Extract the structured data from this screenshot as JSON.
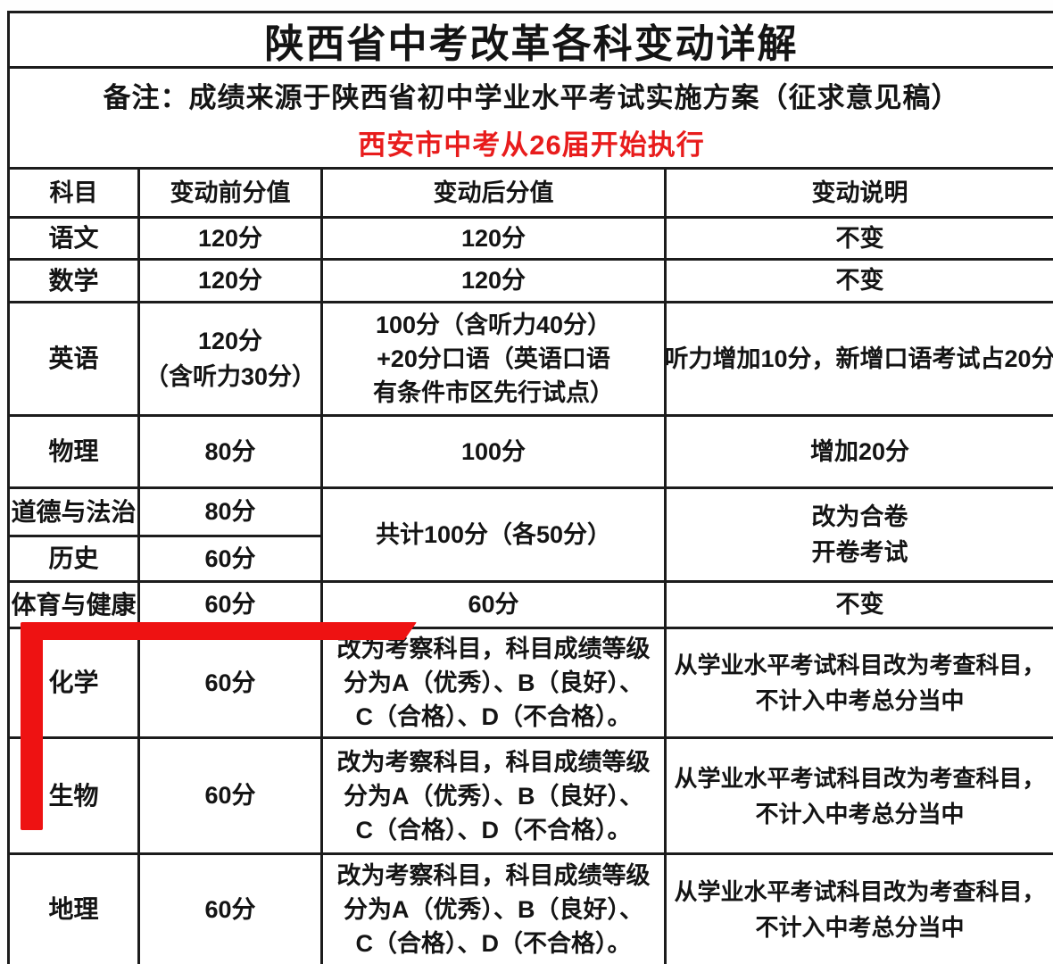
{
  "title": "陕西省中考改革各科变动详解",
  "note": {
    "line1": "备注：成绩来源于陕西省初中学业水平考试实施方案（征求意见稿）",
    "line2": "西安市中考从26届开始执行"
  },
  "colors": {
    "border": "#1c1c1c",
    "text": "#141414",
    "note_red": "#e81c1c",
    "marker_red": "#ee1212"
  },
  "marker": {
    "shape": "red L-shaped highlighter stroke bracketing the 化学 and 生物 rows"
  },
  "table": {
    "headers": [
      "科目",
      "变动前分值",
      "变动后分值",
      "变动说明"
    ],
    "rows": [
      {
        "subject": "语文",
        "before": [
          "120分"
        ],
        "after": [
          "120分"
        ],
        "note": [
          "不变"
        ]
      },
      {
        "subject": "数学",
        "before": [
          "120分"
        ],
        "after": [
          "120分"
        ],
        "note": [
          "不变"
        ]
      },
      {
        "subject": "英语",
        "before": [
          "120分",
          "（含听力30分）"
        ],
        "after": [
          "100分（含听力40分）",
          "+20分口语（英语口语",
          "有条件市区先行试点）"
        ],
        "note": [
          "听力增加10分，新增口语考试占20分"
        ]
      },
      {
        "subject": "物理",
        "before": [
          "80分"
        ],
        "after": [
          "100分"
        ],
        "note": [
          "增加20分"
        ]
      },
      {
        "subject": "道德与法治",
        "before": [
          "80分"
        ]
      },
      {
        "subject": "历史",
        "before": [
          "60分"
        ]
      },
      {
        "subject": "体育与健康",
        "before": [
          "60分"
        ],
        "after": [
          "60分"
        ],
        "note": [
          "不变"
        ]
      },
      {
        "subject": "化学",
        "before": [
          "60分"
        ],
        "after": [
          "改为考察科目，科目成绩等级",
          "分为A（优秀）、B（良好）、",
          "C（合格）、D（不合格）。"
        ],
        "note": [
          "从学业水平考试科目改为考查科目，",
          "不计入中考总分当中"
        ]
      },
      {
        "subject": "生物",
        "before": [
          "60分"
        ],
        "after": [
          "改为考察科目，科目成绩等级",
          "分为A（优秀）、B（良好）、",
          "C（合格）、D（不合格）。"
        ],
        "note": [
          "从学业水平考试科目改为考查科目，",
          "不计入中考总分当中"
        ]
      },
      {
        "subject": "地理",
        "before": [
          "60分"
        ],
        "after": [
          "改为考察科目，科目成绩等级",
          "分为A（优秀）、B（良好）、",
          "C（合格）、D（不合格）。"
        ],
        "note": [
          "从学业水平考试科目改为考查科目，",
          "不计入中考总分当中"
        ]
      }
    ],
    "merged": {
      "after": "共计100分（各50分）",
      "note": [
        "改为合卷",
        "开卷考试"
      ]
    }
  }
}
